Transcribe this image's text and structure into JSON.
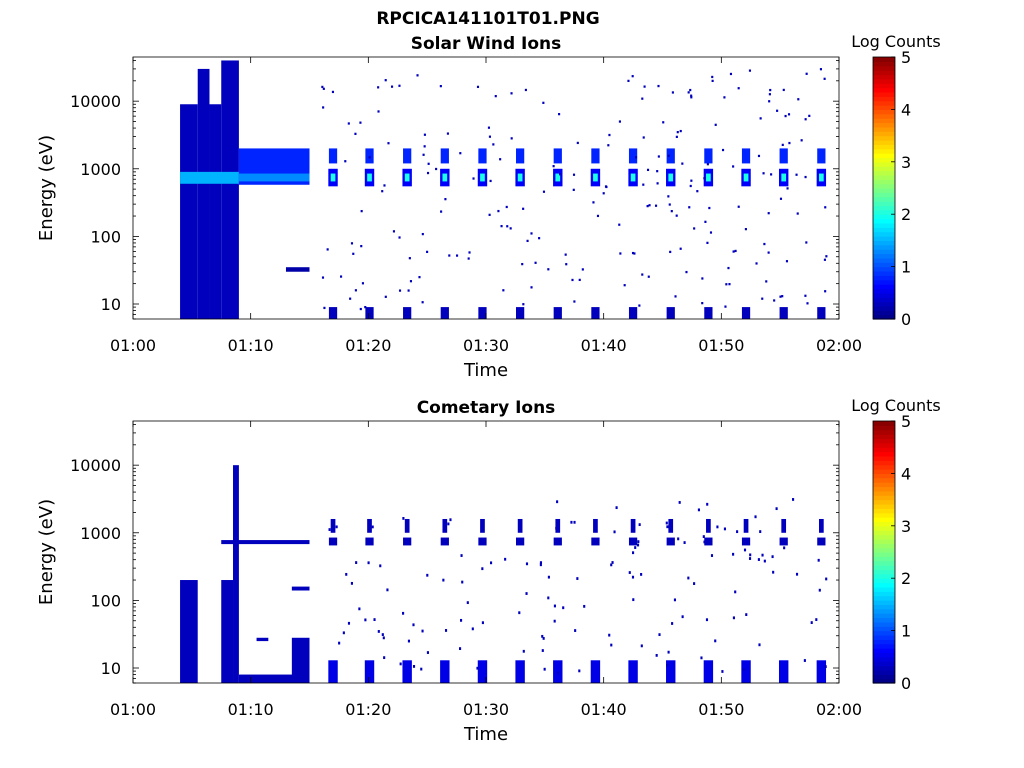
{
  "figure_title": "RPCICA141101T01.PNG",
  "chart_data": [
    {
      "type": "heatmap",
      "title": "Solar Wind Ions",
      "xlabel": "Time",
      "ylabel": "Energy (eV)",
      "x_ticks": [
        "01:00",
        "01:10",
        "01:20",
        "01:30",
        "01:40",
        "01:50",
        "02:00"
      ],
      "xlim_minutes": [
        0,
        60
      ],
      "yscale": "log",
      "ylim": [
        6,
        45000
      ],
      "y_ticks": [
        10,
        100,
        1000,
        10000
      ],
      "y_tick_labels": [
        "10",
        "100",
        "1000",
        "10000"
      ],
      "colorbar": {
        "label": "Log Counts",
        "range": [
          0,
          5
        ],
        "ticks": [
          "0",
          "1",
          "2",
          "3",
          "4",
          "5"
        ],
        "colormap": "jet"
      },
      "features": [
        {
          "name": "broad-spectrum",
          "t": [
            4,
            9
          ],
          "e": [
            6,
            40000
          ],
          "level": 0.3
        },
        {
          "name": "beam-start",
          "t": [
            4,
            9
          ],
          "e": [
            600,
            900
          ],
          "level": 1.5
        },
        {
          "name": "beam-continuous",
          "t": [
            9,
            15
          ],
          "e": [
            580,
            2000
          ],
          "level": 0.8
        },
        {
          "name": "beam-core-continuous",
          "t": [
            9,
            15
          ],
          "e": [
            650,
            850
          ],
          "level": 1.3
        },
        {
          "name": "low-energy-band",
          "t": [
            13,
            15
          ],
          "e": [
            30,
            35
          ],
          "level": 0.2
        },
        {
          "name": "pulse-ticks",
          "t": [
            17,
            20.1,
            23.3,
            26.5,
            29.7,
            32.9,
            36.1,
            39.3,
            42.5,
            45.7,
            48.9,
            52.1,
            55.3,
            58.5
          ]
        },
        {
          "name": "pulse-core",
          "e": [
            550,
            1000
          ],
          "level": 2.0
        },
        {
          "name": "pulse-upper",
          "e": [
            1200,
            2000
          ],
          "level": 0.8
        }
      ]
    },
    {
      "type": "heatmap",
      "title": "Cometary Ions",
      "xlabel": "Time",
      "ylabel": "Energy (eV)",
      "x_ticks": [
        "01:00",
        "01:10",
        "01:20",
        "01:30",
        "01:40",
        "01:50",
        "02:00"
      ],
      "xlim_minutes": [
        0,
        60
      ],
      "yscale": "log",
      "ylim": [
        6,
        45000
      ],
      "y_ticks": [
        10,
        100,
        1000,
        10000
      ],
      "y_tick_labels": [
        "10",
        "100",
        "1000",
        "10000"
      ],
      "colorbar": {
        "label": "Log Counts",
        "range": [
          0,
          5
        ],
        "ticks": [
          "0",
          "1",
          "2",
          "3",
          "4",
          "5"
        ],
        "colormap": "jet"
      },
      "features": [
        {
          "name": "low-block-1",
          "t": [
            4,
            5.5
          ],
          "e": [
            6,
            200
          ],
          "level": 0.3
        },
        {
          "name": "low-block-2",
          "t": [
            7.5,
            8.5
          ],
          "e": [
            6,
            200
          ],
          "level": 0.3
        },
        {
          "name": "spike",
          "t": [
            8.5,
            9
          ],
          "e": [
            6,
            10000
          ],
          "level": 0.3
        },
        {
          "name": "low-band",
          "t": [
            9,
            14
          ],
          "e": [
            6,
            8
          ],
          "level": 0.3
        },
        {
          "name": "block-3",
          "t": [
            13.5,
            15
          ],
          "e": [
            6,
            28
          ],
          "level": 0.3
        },
        {
          "name": "line-700",
          "t": [
            7.5,
            15
          ],
          "e": [
            680,
            780
          ],
          "level": 0.3
        },
        {
          "name": "pulse-ticks",
          "t": [
            17,
            20.1,
            23.3,
            26.5,
            29.7,
            32.9,
            36.1,
            39.3,
            42.5,
            45.7,
            48.9,
            52.1,
            55.3,
            58.5
          ]
        },
        {
          "name": "pulse-low",
          "e": [
            6,
            13
          ],
          "level": 0.5
        },
        {
          "name": "pulse-core",
          "e": [
            650,
            850
          ],
          "level": 0.3
        }
      ]
    }
  ]
}
